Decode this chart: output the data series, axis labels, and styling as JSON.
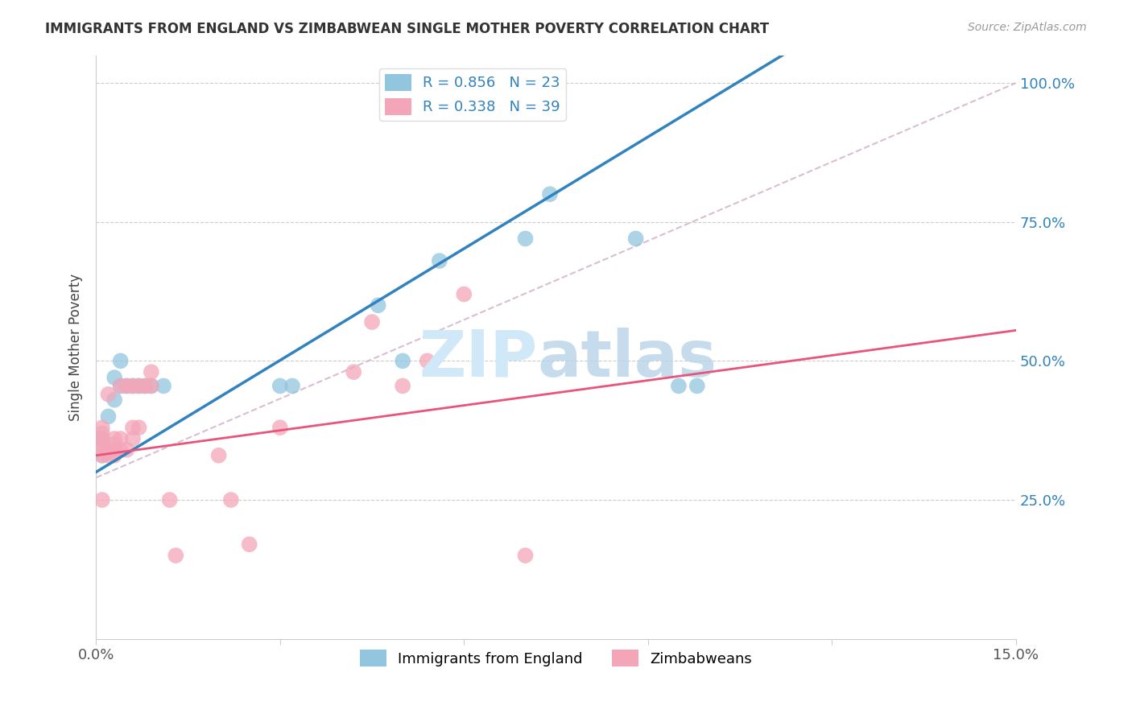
{
  "title": "IMMIGRANTS FROM ENGLAND VS ZIMBABWEAN SINGLE MOTHER POVERTY CORRELATION CHART",
  "source": "Source: ZipAtlas.com",
  "ylabel": "Single Mother Poverty",
  "legend_entry1": "R = 0.856   N = 23",
  "legend_entry2": "R = 0.338   N = 39",
  "legend_label1": "Immigrants from England",
  "legend_label2": "Zimbabweans",
  "color_blue": "#92c5de",
  "color_pink": "#f4a6b8",
  "color_blue_line": "#3182bd",
  "color_pink_line": "#e8547a",
  "color_dashed": "#d0aec8",
  "blue_points_x": [
    0.001,
    0.001,
    0.002,
    0.003,
    0.003,
    0.004,
    0.004,
    0.005,
    0.006,
    0.007,
    0.008,
    0.009,
    0.011,
    0.03,
    0.032,
    0.046,
    0.05,
    0.056,
    0.07,
    0.074,
    0.088,
    0.095,
    0.098
  ],
  "blue_points_y": [
    0.33,
    0.36,
    0.4,
    0.43,
    0.47,
    0.455,
    0.5,
    0.455,
    0.455,
    0.455,
    0.455,
    0.455,
    0.455,
    0.455,
    0.455,
    0.6,
    0.5,
    0.68,
    0.72,
    0.8,
    0.72,
    0.455,
    0.455
  ],
  "pink_points_x": [
    0.001,
    0.001,
    0.001,
    0.001,
    0.001,
    0.001,
    0.001,
    0.002,
    0.002,
    0.002,
    0.003,
    0.003,
    0.003,
    0.003,
    0.004,
    0.004,
    0.004,
    0.005,
    0.005,
    0.006,
    0.006,
    0.006,
    0.007,
    0.007,
    0.008,
    0.009,
    0.009,
    0.012,
    0.013,
    0.02,
    0.022,
    0.025,
    0.03,
    0.042,
    0.045,
    0.05,
    0.054,
    0.06,
    0.07
  ],
  "pink_points_y": [
    0.33,
    0.34,
    0.35,
    0.36,
    0.37,
    0.38,
    0.25,
    0.33,
    0.34,
    0.44,
    0.33,
    0.34,
    0.35,
    0.36,
    0.34,
    0.36,
    0.455,
    0.34,
    0.455,
    0.36,
    0.38,
    0.455,
    0.38,
    0.455,
    0.455,
    0.455,
    0.48,
    0.25,
    0.15,
    0.33,
    0.25,
    0.17,
    0.38,
    0.48,
    0.57,
    0.455,
    0.5,
    0.62,
    0.15
  ],
  "xlim": [
    0.0,
    0.15
  ],
  "ylim": [
    0.0,
    1.05
  ],
  "y_tick_vals": [
    0.25,
    0.5,
    0.75,
    1.0
  ],
  "y_tick_labels": [
    "25.0%",
    "50.0%",
    "75.0%",
    "100.0%"
  ],
  "x_tick_vals": [
    0.0,
    0.15
  ],
  "x_tick_labels": [
    "0.0%",
    "15.0%"
  ],
  "dashed_line": [
    [
      0.0,
      0.15
    ],
    [
      0.29,
      1.0
    ]
  ]
}
